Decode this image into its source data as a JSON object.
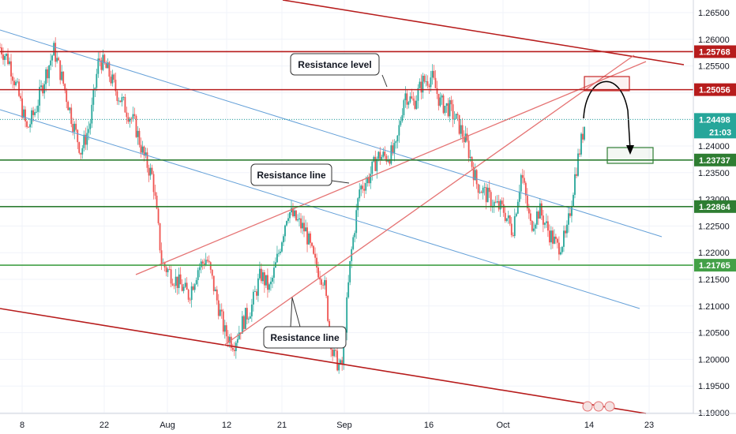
{
  "chart_data": {
    "type": "candlestick",
    "x_ticks": [
      "8",
      "22",
      "Aug",
      "12",
      "21",
      "Sep",
      "16",
      "Oct",
      "14",
      "23"
    ],
    "y_ticks": [
      "1.26500",
      "1.26000",
      "1.25500",
      "1.25000",
      "1.24500",
      "1.24000",
      "1.23500",
      "1.23000",
      "1.22500",
      "1.22000",
      "1.21500",
      "1.21000",
      "1.20500",
      "1.20000",
      "1.19500",
      "1.19000"
    ],
    "ylim": [
      1.19,
      1.2675
    ],
    "grid": true,
    "last_price": {
      "value": "1.24498",
      "countdown": "21:03",
      "color": "#26a69a"
    },
    "levels": [
      {
        "value": 1.25768,
        "label": "1.25768",
        "color": "#b71c1c"
      },
      {
        "value": 1.25056,
        "label": "1.25056",
        "color": "#b71c1c"
      },
      {
        "value": 1.23737,
        "label": "1.23737",
        "color": "#2e7d32"
      },
      {
        "value": 1.22864,
        "label": "1.22864",
        "color": "#2e7d32"
      },
      {
        "value": 1.21765,
        "label": "1.21765",
        "color": "#43a047"
      }
    ],
    "annotations": [
      {
        "text": "Resistance level"
      },
      {
        "text": "Resistance line"
      },
      {
        "text": "Resistance line"
      }
    ],
    "colors": {
      "up": "#26a69a",
      "down": "#ef5350",
      "channel_red": "#b71c1c",
      "trend_red": "#e57373",
      "channel_blue": "#64a0d8",
      "box_green": "#2e7d32",
      "box_red": "#c62828"
    },
    "price_path": [
      1.2585,
      1.256,
      1.25,
      1.243,
      1.247,
      1.253,
      1.258,
      1.252,
      1.245,
      1.239,
      1.244,
      1.2565,
      1.254,
      1.25,
      1.247,
      1.244,
      1.238,
      1.234,
      1.218,
      1.216,
      1.214,
      1.212,
      1.217,
      1.219,
      1.212,
      1.205,
      1.203,
      1.207,
      1.21,
      1.216,
      1.213,
      1.22,
      1.228,
      1.226,
      1.224,
      1.218,
      1.215,
      1.201,
      1.198,
      1.219,
      1.232,
      1.234,
      1.238,
      1.238,
      1.239,
      1.25,
      1.248,
      1.252,
      1.253,
      1.248,
      1.247,
      1.244,
      1.24,
      1.233,
      1.231,
      1.229,
      1.228,
      1.224,
      1.235,
      1.225,
      1.228,
      1.224,
      1.221,
      1.223,
      1.235,
      1.244
    ]
  }
}
